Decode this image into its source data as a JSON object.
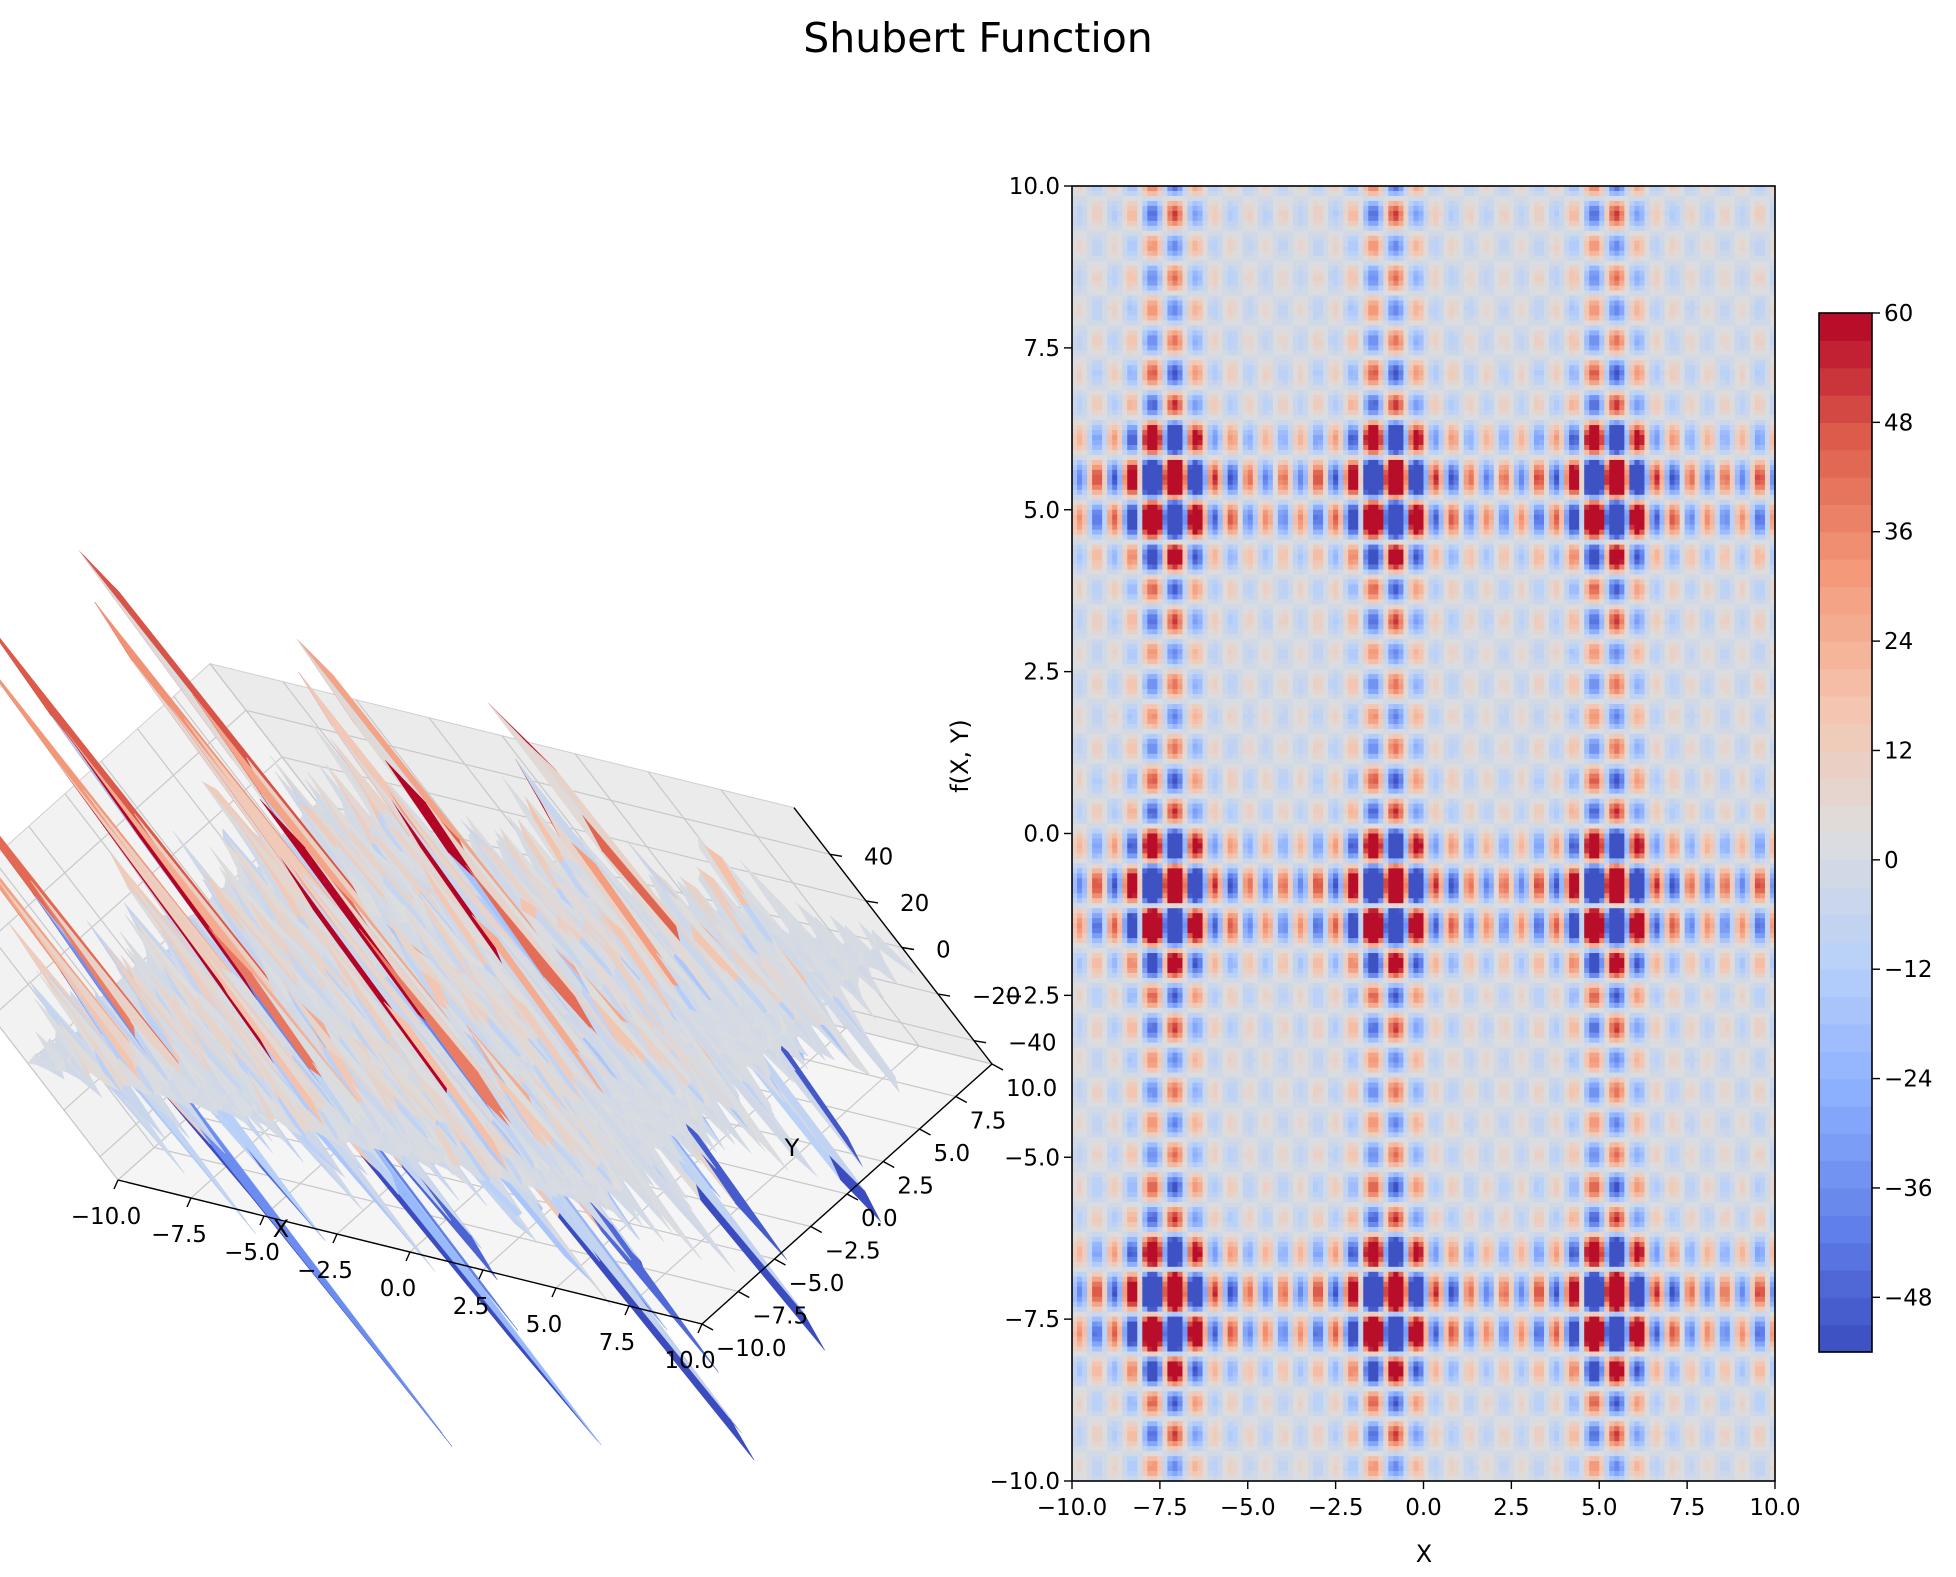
{
  "title": "Shubert Function",
  "chart_data": [
    {
      "type": "surface3d",
      "function": "shubert",
      "xlabel": "X",
      "ylabel": "Y",
      "zlabel": "f(X, Y)",
      "xlim": [
        -10,
        10
      ],
      "ylim": [
        -10,
        10
      ],
      "zlim": [
        -50,
        60
      ],
      "x_ticks": [
        "−10.0",
        "−7.5",
        "−5.0",
        "−2.5",
        "0.0",
        "2.5",
        "5.0",
        "7.5",
        "10.0"
      ],
      "y_ticks": [
        "−10.0",
        "−7.5",
        "−5.0",
        "−2.5",
        "0.0",
        "2.5",
        "5.0",
        "7.5",
        "10.0"
      ],
      "z_ticks": [
        "40",
        "20",
        "0",
        "−20",
        "−40"
      ],
      "colormap": "coolwarm"
    },
    {
      "type": "heatmap",
      "subtype": "filled-contour",
      "function": "shubert",
      "xlabel": "X",
      "ylabel": "",
      "xlim": [
        -10,
        10
      ],
      "ylim": [
        -10,
        10
      ],
      "x_ticks": [
        "−10.0",
        "−7.5",
        "−5.0",
        "−2.5",
        "0.0",
        "2.5",
        "5.0",
        "7.5",
        "10.0"
      ],
      "y_ticks": [
        "10.0",
        "7.5",
        "5.0",
        "2.5",
        "0.0",
        "−2.5",
        "−5.0",
        "−7.5",
        "−10.0"
      ],
      "levels": [
        -54,
        60
      ],
      "colormap": "coolwarm",
      "colorbar": {
        "ticks": [
          "60",
          "48",
          "36",
          "24",
          "12",
          "0",
          "−12",
          "−24",
          "−36",
          "−48"
        ]
      }
    }
  ],
  "colors": {
    "low": "#3b4cc0",
    "mid": "#dddddd",
    "high": "#b40426",
    "pane": "#f2f2f2",
    "grid": "#cccccc"
  }
}
